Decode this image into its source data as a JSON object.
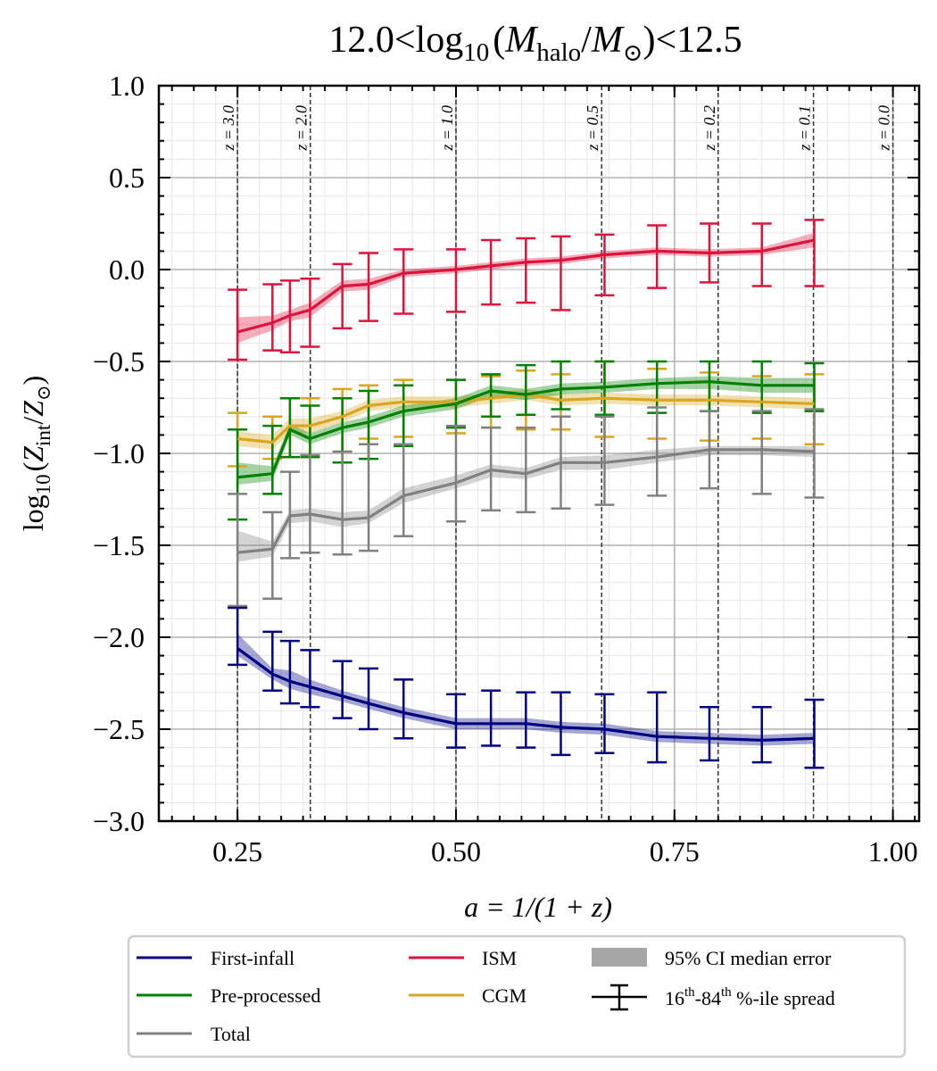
{
  "chart_data": {
    "type": "line",
    "title": "12.0<log10(Mhalo/M⊙)<12.5",
    "title_parts": {
      "lo": "12.0",
      "hi": "12.5",
      "lt": "<",
      "log": "log",
      "base": "10",
      "m": "M",
      "halo": "halo",
      "sun": "M",
      "sun_sym": "⊙",
      "lp": "(",
      "rp": ")",
      "slash": "/"
    },
    "xlabel": "a = 1/(1 + z)",
    "ylabel": "log10(Zint/Z⊙)",
    "ylabel_parts": {
      "log": "log",
      "base": "10",
      "z": "Z",
      "int": "int",
      "sun_sym": "⊙",
      "slash": "/",
      "lp": "(",
      "rp": ")"
    },
    "xlim": [
      0.16,
      1.03
    ],
    "ylim": [
      -3.0,
      1.0
    ],
    "xticks": [
      0.25,
      0.5,
      0.75,
      1.0
    ],
    "xtick_labels": [
      "0.25",
      "0.50",
      "0.75",
      "1.00"
    ],
    "yticks": [
      1.0,
      0.5,
      0.0,
      -0.5,
      -1.0,
      -1.5,
      -2.0,
      -2.5,
      -3.0
    ],
    "ytick_labels": [
      "1.0",
      "0.5",
      "0.0",
      "−0.5",
      "−1.0",
      "−1.5",
      "−2.0",
      "−2.5",
      "−3.0"
    ],
    "grid": true,
    "redshift_markers": [
      {
        "a": 0.25,
        "label": "z = 3.0"
      },
      {
        "a": 0.3333,
        "label": "z = 2.0"
      },
      {
        "a": 0.5,
        "label": "z = 1.0"
      },
      {
        "a": 0.6667,
        "label": "z = 0.5"
      },
      {
        "a": 0.8,
        "label": "z = 0.2"
      },
      {
        "a": 0.9091,
        "label": "z = 0.1"
      },
      {
        "a": 1.0,
        "label": "z = 0.0"
      }
    ],
    "x": [
      0.25,
      0.29,
      0.31,
      0.333,
      0.37,
      0.4,
      0.44,
      0.5,
      0.54,
      0.58,
      0.62,
      0.67,
      0.73,
      0.79,
      0.85,
      0.91
    ],
    "series": [
      {
        "name": "ISM",
        "color": "#dc143c",
        "values": [
          -0.34,
          -0.29,
          -0.25,
          -0.22,
          -0.09,
          -0.08,
          -0.02,
          0.0,
          0.02,
          0.04,
          0.05,
          0.08,
          0.1,
          0.09,
          0.1,
          0.16
        ],
        "ci_low": [
          -0.4,
          -0.33,
          -0.28,
          -0.26,
          -0.12,
          -0.11,
          -0.04,
          -0.02,
          0.0,
          0.02,
          0.03,
          0.06,
          0.08,
          0.07,
          0.08,
          0.12
        ],
        "ci_high": [
          -0.26,
          -0.25,
          -0.22,
          -0.18,
          -0.06,
          -0.05,
          0.0,
          0.02,
          0.04,
          0.06,
          0.07,
          0.1,
          0.12,
          0.11,
          0.12,
          0.2
        ],
        "p16": [
          -0.49,
          -0.44,
          -0.45,
          -0.42,
          -0.32,
          -0.28,
          -0.24,
          -0.23,
          -0.19,
          -0.18,
          -0.22,
          -0.14,
          -0.1,
          -0.07,
          -0.09,
          -0.09
        ],
        "p84": [
          -0.11,
          -0.08,
          -0.06,
          -0.05,
          0.03,
          0.09,
          0.11,
          0.11,
          0.16,
          0.17,
          0.18,
          0.19,
          0.24,
          0.25,
          0.25,
          0.27
        ]
      },
      {
        "name": "CGM",
        "color": "#daa520",
        "values": [
          -0.92,
          -0.94,
          -0.85,
          -0.85,
          -0.8,
          -0.74,
          -0.72,
          -0.72,
          -0.7,
          -0.68,
          -0.71,
          -0.7,
          -0.71,
          -0.71,
          -0.72,
          -0.73
        ],
        "ci_low": [
          -0.96,
          -0.98,
          -0.89,
          -0.89,
          -0.83,
          -0.77,
          -0.75,
          -0.75,
          -0.73,
          -0.71,
          -0.74,
          -0.73,
          -0.74,
          -0.74,
          -0.75,
          -0.76
        ],
        "ci_high": [
          -0.88,
          -0.9,
          -0.81,
          -0.81,
          -0.77,
          -0.71,
          -0.69,
          -0.69,
          -0.67,
          -0.65,
          -0.68,
          -0.67,
          -0.68,
          -0.68,
          -0.69,
          -0.7
        ],
        "p16": [
          -1.07,
          -1.03,
          -1.02,
          -1.02,
          -0.99,
          -0.92,
          -0.91,
          -0.89,
          -0.86,
          -0.87,
          -0.87,
          -0.91,
          -0.92,
          -0.93,
          -0.92,
          -0.95
        ],
        "p84": [
          -0.78,
          -0.8,
          -0.7,
          -0.7,
          -0.65,
          -0.63,
          -0.6,
          -0.6,
          -0.58,
          -0.55,
          -0.57,
          -0.5,
          -0.54,
          -0.56,
          -0.58,
          -0.57
        ]
      },
      {
        "name": "Pre-processed",
        "color": "#008000",
        "values": [
          -1.13,
          -1.11,
          -0.87,
          -0.92,
          -0.86,
          -0.83,
          -0.77,
          -0.73,
          -0.66,
          -0.68,
          -0.65,
          -0.64,
          -0.62,
          -0.61,
          -0.63,
          -0.63
        ],
        "ci_low": [
          -1.17,
          -1.15,
          -0.9,
          -0.95,
          -0.89,
          -0.86,
          -0.8,
          -0.76,
          -0.69,
          -0.71,
          -0.68,
          -0.67,
          -0.65,
          -0.65,
          -0.67,
          -0.67
        ],
        "ci_high": [
          -1.05,
          -1.07,
          -0.84,
          -0.89,
          -0.83,
          -0.8,
          -0.74,
          -0.7,
          -0.63,
          -0.65,
          -0.62,
          -0.61,
          -0.59,
          -0.58,
          -0.59,
          -0.59
        ],
        "p16": [
          -1.36,
          -1.22,
          -1.02,
          -1.02,
          -1.05,
          -1.03,
          -0.96,
          -0.86,
          -0.8,
          -0.79,
          -0.76,
          -0.79,
          -0.78,
          -0.77,
          -0.78,
          -0.77
        ],
        "p84": [
          -0.87,
          -0.85,
          -0.7,
          -0.74,
          -0.7,
          -0.66,
          -0.63,
          -0.6,
          -0.57,
          -0.52,
          -0.5,
          -0.5,
          -0.5,
          -0.5,
          -0.5,
          -0.51
        ]
      },
      {
        "name": "Total",
        "color": "#808080",
        "values": [
          -1.54,
          -1.52,
          -1.34,
          -1.33,
          -1.36,
          -1.35,
          -1.23,
          -1.16,
          -1.09,
          -1.11,
          -1.05,
          -1.05,
          -1.02,
          -0.98,
          -0.98,
          -0.99
        ],
        "ci_low": [
          -1.59,
          -1.56,
          -1.38,
          -1.37,
          -1.4,
          -1.38,
          -1.27,
          -1.19,
          -1.13,
          -1.14,
          -1.09,
          -1.09,
          -1.05,
          -1.01,
          -1.01,
          -1.02
        ],
        "ci_high": [
          -1.42,
          -1.48,
          -1.31,
          -1.3,
          -1.32,
          -1.31,
          -1.19,
          -1.12,
          -1.06,
          -1.08,
          -1.02,
          -1.01,
          -0.98,
          -0.96,
          -0.96,
          -0.96
        ],
        "p16": [
          -1.83,
          -1.79,
          -1.57,
          -1.54,
          -1.55,
          -1.53,
          -1.45,
          -1.37,
          -1.31,
          -1.32,
          -1.3,
          -1.28,
          -1.23,
          -1.19,
          -1.22,
          -1.24
        ],
        "p84": [
          -1.22,
          -1.32,
          -1.1,
          -1.01,
          -0.99,
          -0.95,
          -0.95,
          -0.85,
          -0.86,
          -0.86,
          -0.8,
          -0.8,
          -0.75,
          -0.77,
          -0.77,
          -0.76
        ]
      },
      {
        "name": "First-infall",
        "color": "#000080",
        "values": [
          -2.06,
          -2.2,
          -2.24,
          -2.27,
          -2.32,
          -2.36,
          -2.41,
          -2.47,
          -2.47,
          -2.47,
          -2.49,
          -2.5,
          -2.54,
          -2.55,
          -2.56,
          -2.55
        ],
        "ci_low": [
          -2.1,
          -2.23,
          -2.28,
          -2.31,
          -2.35,
          -2.39,
          -2.44,
          -2.5,
          -2.5,
          -2.5,
          -2.52,
          -2.53,
          -2.57,
          -2.58,
          -2.59,
          -2.58
        ],
        "ci_high": [
          -1.98,
          -2.17,
          -2.18,
          -2.23,
          -2.29,
          -2.33,
          -2.38,
          -2.44,
          -2.44,
          -2.44,
          -2.46,
          -2.47,
          -2.51,
          -2.52,
          -2.53,
          -2.52
        ],
        "p16": [
          -2.15,
          -2.29,
          -2.36,
          -2.38,
          -2.44,
          -2.5,
          -2.55,
          -2.6,
          -2.59,
          -2.6,
          -2.64,
          -2.63,
          -2.68,
          -2.67,
          -2.68,
          -2.71
        ],
        "p84": [
          -1.84,
          -1.97,
          -2.02,
          -2.07,
          -2.13,
          -2.17,
          -2.23,
          -2.31,
          -2.29,
          -2.3,
          -2.3,
          -2.31,
          -2.3,
          -2.38,
          -2.38,
          -2.34
        ]
      }
    ],
    "legend": {
      "placement": "below",
      "entries": [
        {
          "label": "First-infall",
          "color": "#000080",
          "kind": "line"
        },
        {
          "label": "Pre-processed",
          "color": "#008000",
          "kind": "line"
        },
        {
          "label": "Total",
          "color": "#808080",
          "kind": "line"
        },
        {
          "label": "ISM",
          "color": "#dc143c",
          "kind": "line"
        },
        {
          "label": "CGM",
          "color": "#daa520",
          "kind": "line"
        },
        {
          "label": "95% CI median error",
          "color": "#a6a6a6",
          "kind": "patch"
        },
        {
          "label": "16th-84th %-ile spread",
          "color": "#000000",
          "kind": "errorbar",
          "parts": {
            "a": "16",
            "sup1": "th",
            "b": "-84",
            "sup2": "th",
            "c": " %-ile spread"
          }
        }
      ]
    }
  }
}
